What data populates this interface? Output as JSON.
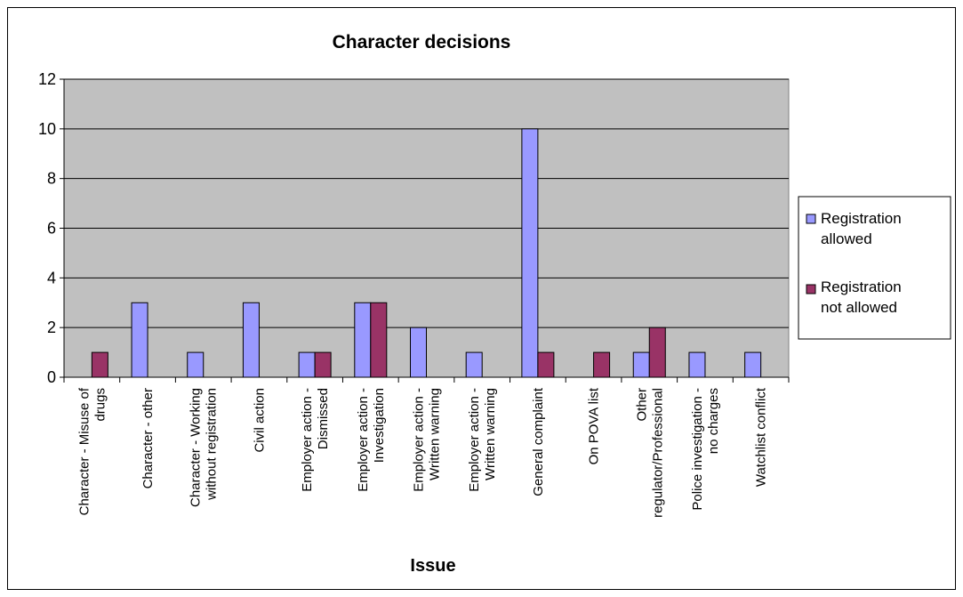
{
  "chart_data": {
    "type": "bar",
    "title": "Character decisions",
    "xlabel": "Issue",
    "ylabel": "",
    "ylim": [
      0,
      12
    ],
    "yticks": [
      0,
      2,
      4,
      6,
      8,
      10,
      12
    ],
    "grid": true,
    "legend_position": "right",
    "categories": [
      [
        "Character - Misuse of",
        "drugs"
      ],
      [
        "Character - other"
      ],
      [
        "Character - Working",
        "without registration"
      ],
      [
        "Civil action"
      ],
      [
        "Employer action -",
        "Dismissed"
      ],
      [
        "Employer action -",
        "Investigation"
      ],
      [
        "Employer action -",
        "Written warning"
      ],
      [
        "Employer action -",
        "Written warning"
      ],
      [
        "General complaint"
      ],
      [
        "On POVA list"
      ],
      [
        "Other",
        "regulator/Professional"
      ],
      [
        "Police investigation -",
        "no charges"
      ],
      [
        "Watchlist conflict"
      ]
    ],
    "series": [
      {
        "name": [
          "Registration",
          "allowed"
        ],
        "color": "#9999ff",
        "values": [
          0,
          3,
          1,
          3,
          1,
          3,
          2,
          1,
          10,
          0,
          1,
          1,
          1
        ]
      },
      {
        "name": [
          "Registration",
          "not allowed"
        ],
        "color": "#993366",
        "values": [
          1,
          0,
          0,
          0,
          1,
          3,
          0,
          0,
          1,
          1,
          2,
          0,
          0
        ]
      }
    ],
    "plot_background": "#c0c0c0"
  }
}
